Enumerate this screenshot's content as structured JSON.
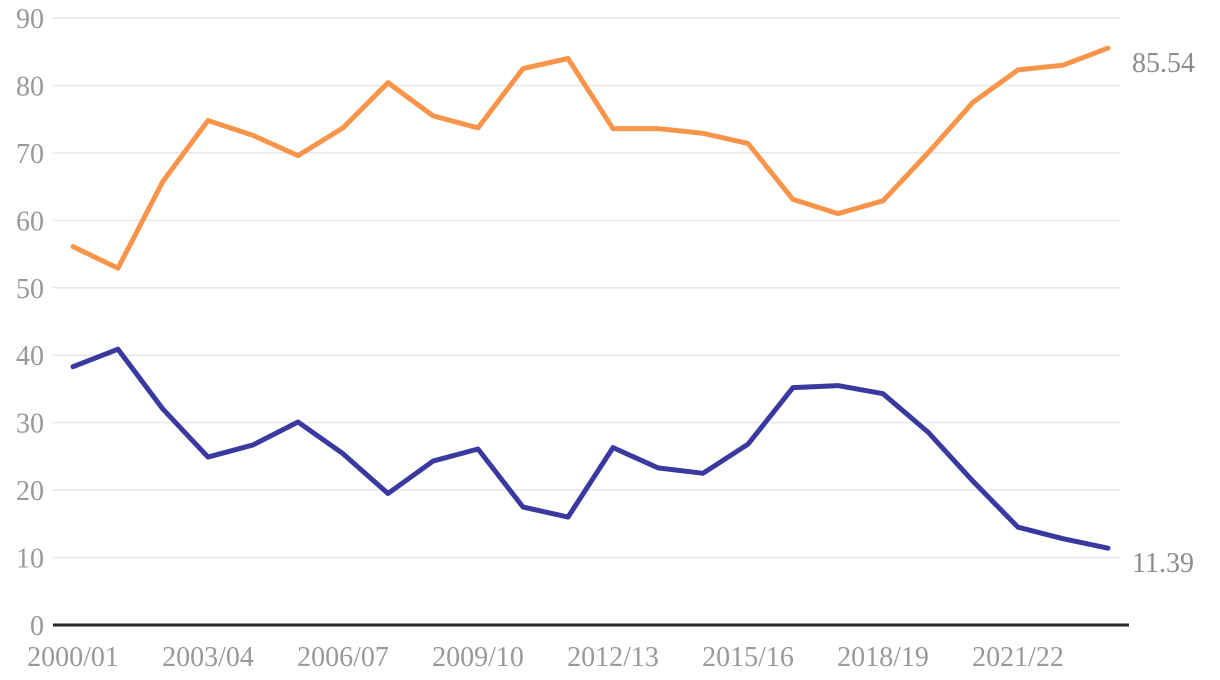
{
  "chart_data": {
    "type": "line",
    "title": "",
    "xlabel": "",
    "ylabel": "",
    "ylim": [
      0,
      90
    ],
    "y_ticks": [
      0,
      10,
      20,
      30,
      40,
      50,
      60,
      70,
      80,
      90
    ],
    "grid": true,
    "legend": "none",
    "categories": [
      "2000/01",
      "2001/02",
      "2002/03",
      "2003/04",
      "2004/05",
      "2005/06",
      "2006/07",
      "2007/08",
      "2008/09",
      "2009/10",
      "2010/11",
      "2011/12",
      "2012/13",
      "2013/14",
      "2014/15",
      "2015/16",
      "2016/17",
      "2017/18",
      "2018/19",
      "2019/20",
      "2020/21",
      "2021/22",
      "2022/23",
      "2023/24"
    ],
    "x_tick_labels": [
      "2000/01",
      "2003/04",
      "2006/07",
      "2009/10",
      "2012/13",
      "2015/16",
      "2018/19",
      "2021/22"
    ],
    "series": [
      {
        "name": "orange-series",
        "color": "#F8954B",
        "end_label": "85.54",
        "values": [
          56.1,
          52.9,
          65.8,
          74.8,
          72.6,
          69.6,
          73.7,
          80.4,
          75.5,
          73.7,
          82.5,
          84.0,
          73.6,
          73.6,
          72.9,
          71.4,
          63.1,
          61.0,
          62.9,
          70.0,
          77.5,
          82.3,
          83.0,
          85.54
        ]
      },
      {
        "name": "blue-series",
        "color": "#39399F",
        "end_label": "11.39",
        "values": [
          38.3,
          40.9,
          32.0,
          24.9,
          26.7,
          30.1,
          25.4,
          19.5,
          24.3,
          26.1,
          17.5,
          16.0,
          26.3,
          23.3,
          22.5,
          26.8,
          35.2,
          35.5,
          34.3,
          28.6,
          21.3,
          14.5,
          12.8,
          11.39
        ]
      }
    ],
    "colors": {
      "gridline": "#e7e7e7",
      "axis": "#2a2a2a",
      "tick_label": "#999999",
      "end_label": "#8c8c8c",
      "background": "#ffffff"
    }
  }
}
